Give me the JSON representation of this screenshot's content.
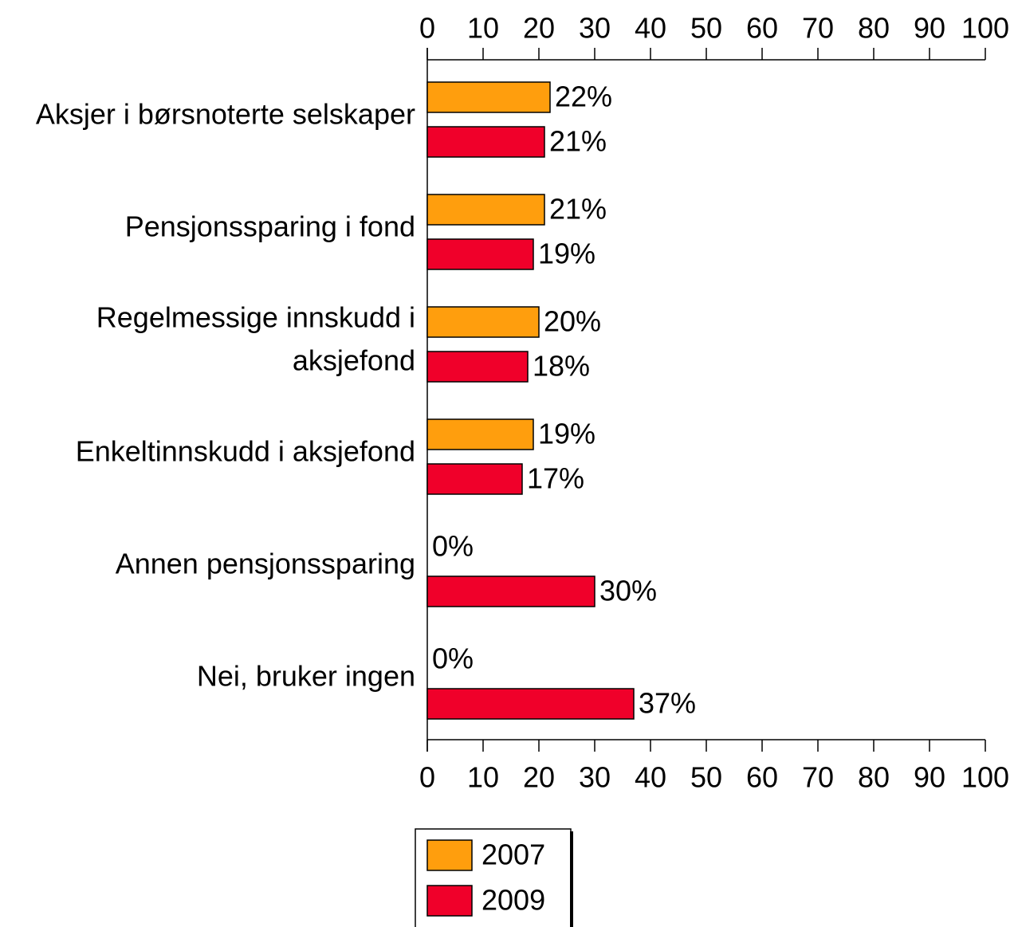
{
  "chart_data": {
    "type": "bar",
    "orientation": "horizontal",
    "categories": [
      "Aksjer i børsnoterte selskaper",
      "Pensjonssparing i fond",
      "Regelmessige innskudd i aksjefond",
      "Enkeltinnskudd i aksjefond",
      "Annen pensjonssparing",
      "Nei, bruker ingen"
    ],
    "series": [
      {
        "name": "2007",
        "color": "#ff9e0d",
        "values": [
          22,
          21,
          20,
          19,
          0,
          0
        ],
        "value_labels": [
          "22%",
          "21%",
          "20%",
          "19%",
          "0%",
          "0%"
        ]
      },
      {
        "name": "2009",
        "color": "#f0002a",
        "values": [
          21,
          19,
          18,
          17,
          30,
          37
        ],
        "value_labels": [
          "21%",
          "19%",
          "18%",
          "17%",
          "30%",
          "37%"
        ]
      }
    ],
    "xlim": [
      0,
      100
    ],
    "xticks": [
      0,
      10,
      20,
      30,
      40,
      50,
      60,
      70,
      80,
      90,
      100
    ],
    "grid": false,
    "legend": "bottom"
  }
}
